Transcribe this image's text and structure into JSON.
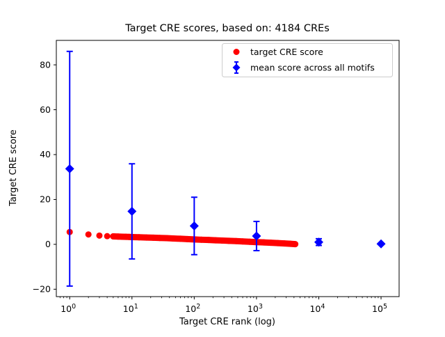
{
  "figure": {
    "title": "Target CRE scores, based on: 4184 CREs",
    "xlabel": "Target CRE rank (log)",
    "ylabel": "Target CRE score"
  },
  "colors": {
    "target_series": "#ff0000",
    "mean_series": "#0000ff",
    "axis": "#000000",
    "legend_border": "#cccccc",
    "background": "#ffffff"
  },
  "legend": {
    "position": "upper right",
    "entries": [
      {
        "label": "target CRE score",
        "marker": "red-circle",
        "color": "#ff0000"
      },
      {
        "label": "mean score across all motifs",
        "marker": "blue-diamond-errorbar",
        "color": "#0000ff"
      }
    ]
  },
  "chart_data": {
    "type": "scatter",
    "title": "Target CRE scores, based on: 4184 CREs",
    "xlabel": "Target CRE rank (log)",
    "ylabel": "Target CRE score",
    "x_scale": "log",
    "y_scale": "linear",
    "xlim": [
      0.61,
      195000
    ],
    "ylim": [
      -23.3,
      90.9
    ],
    "x_tick_exponents": [
      0,
      1,
      2,
      3,
      4,
      5
    ],
    "y_ticks": [
      -20,
      0,
      20,
      40,
      60,
      80
    ],
    "grid": false,
    "legend_position": "upper right",
    "series": [
      {
        "name": "target CRE score",
        "type": "scatter",
        "marker": "circle",
        "color": "#ff0000",
        "sampling": "log-sampled subset of the 4184 plotted rank/score points; scores decay from 5.5 at rank 1 to ~0.1 at rank 4184",
        "x": [
          1,
          2,
          3,
          4,
          5,
          6,
          7,
          8,
          9,
          10,
          13,
          17,
          22,
          28,
          36,
          46,
          60,
          77,
          100,
          130,
          170,
          220,
          280,
          360,
          470,
          600,
          780,
          1000,
          1300,
          1700,
          2200,
          2800,
          3500,
          4184
        ],
        "y": [
          5.5,
          4.4,
          3.9,
          3.65,
          3.55,
          3.45,
          3.4,
          3.35,
          3.3,
          3.25,
          3.15,
          3.05,
          2.95,
          2.85,
          2.75,
          2.6,
          2.5,
          2.35,
          2.2,
          2.05,
          1.95,
          1.8,
          1.7,
          1.55,
          1.45,
          1.3,
          1.15,
          1.0,
          0.85,
          0.7,
          0.55,
          0.4,
          0.25,
          0.1
        ]
      },
      {
        "name": "mean score across all motifs",
        "type": "errorbar",
        "marker": "diamond",
        "color": "#0000ff",
        "x": [
          1,
          10,
          100,
          1000,
          10000,
          100000
        ],
        "y": [
          33.7,
          14.7,
          8.2,
          3.7,
          1.0,
          0.2
        ],
        "yerr": [
          52.3,
          21.2,
          12.8,
          6.5,
          1.5,
          0.4
        ]
      }
    ]
  }
}
